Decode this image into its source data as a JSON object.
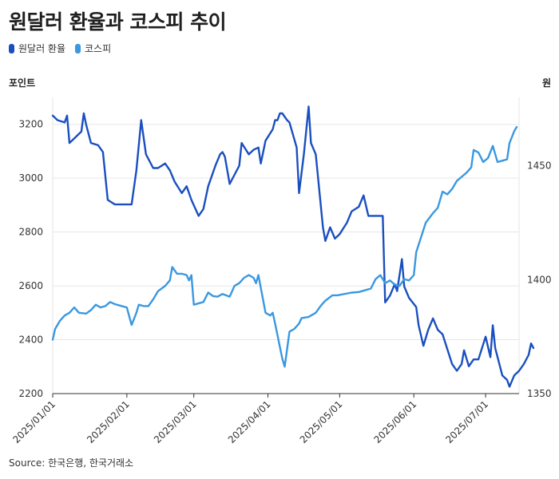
{
  "title": "원달러 환율과 코스피 추이",
  "legend": [
    {
      "label": "원달러 환율",
      "color": "#1a4fbf"
    },
    {
      "label": "코스피",
      "color": "#3a98e0"
    }
  ],
  "left_unit": "포인트",
  "right_unit": "원",
  "source": "Source: 한국은행, 한국거래소",
  "chart_data": {
    "type": "line",
    "title": "원달러 환율과 코스피 추이",
    "xlabel": "",
    "ylabel": "포인트",
    "y2label": "원",
    "x_ticks": [
      "2025/01/01",
      "2025/02/01",
      "2025/03/01",
      "2025/04/01",
      "2025/05/01",
      "2025/06/01",
      "2025/07/01"
    ],
    "ylim": [
      2200,
      3300
    ],
    "y_ticks": [
      2200,
      2400,
      2600,
      2800,
      3000,
      3200
    ],
    "y2lim": [
      1350,
      1480
    ],
    "y2_ticks": [
      1350,
      1400,
      1450
    ],
    "grid": true,
    "legend_position": "top-left",
    "series": [
      {
        "name": "원달러 환율",
        "axis": "right",
        "color": "#1a4fbf",
        "points": [
          [
            "2025-01-01",
            1472
          ],
          [
            "2025-01-03",
            1470
          ],
          [
            "2025-01-06",
            1469
          ],
          [
            "2025-01-07",
            1472
          ],
          [
            "2025-01-08",
            1460
          ],
          [
            "2025-01-10",
            1462
          ],
          [
            "2025-01-13",
            1465
          ],
          [
            "2025-01-14",
            1473
          ],
          [
            "2025-01-15",
            1468
          ],
          [
            "2025-01-17",
            1460
          ],
          [
            "2025-01-20",
            1459
          ],
          [
            "2025-01-22",
            1456
          ],
          [
            "2025-01-24",
            1435
          ],
          [
            "2025-01-27",
            1433
          ],
          [
            "2025-02-03",
            1433
          ],
          [
            "2025-02-05",
            1448
          ],
          [
            "2025-02-07",
            1470
          ],
          [
            "2025-02-09",
            1455
          ],
          [
            "2025-02-12",
            1449
          ],
          [
            "2025-02-14",
            1449
          ],
          [
            "2025-02-17",
            1451
          ],
          [
            "2025-02-19",
            1448
          ],
          [
            "2025-02-21",
            1443
          ],
          [
            "2025-02-24",
            1438
          ],
          [
            "2025-02-26",
            1441
          ],
          [
            "2025-02-28",
            1435
          ],
          [
            "2025-03-03",
            1428
          ],
          [
            "2025-03-05",
            1431
          ],
          [
            "2025-03-07",
            1441
          ],
          [
            "2025-03-10",
            1450
          ],
          [
            "2025-03-12",
            1455
          ],
          [
            "2025-03-13",
            1456
          ],
          [
            "2025-03-14",
            1454
          ],
          [
            "2025-03-16",
            1442
          ],
          [
            "2025-03-18",
            1446
          ],
          [
            "2025-03-20",
            1450
          ],
          [
            "2025-03-21",
            1460
          ],
          [
            "2025-03-24",
            1455
          ],
          [
            "2025-03-26",
            1457
          ],
          [
            "2025-03-28",
            1458
          ],
          [
            "2025-03-29",
            1451
          ],
          [
            "2025-03-31",
            1461
          ],
          [
            "2025-04-03",
            1466
          ],
          [
            "2025-04-04",
            1470
          ],
          [
            "2025-04-05",
            1470
          ],
          [
            "2025-04-06",
            1473
          ],
          [
            "2025-04-07",
            1473
          ],
          [
            "2025-04-09",
            1470
          ],
          [
            "2025-04-10",
            1469
          ],
          [
            "2025-04-13",
            1458
          ],
          [
            "2025-04-14",
            1438
          ],
          [
            "2025-04-16",
            1455
          ],
          [
            "2025-04-18",
            1476
          ],
          [
            "2025-04-19",
            1460
          ],
          [
            "2025-04-21",
            1455
          ],
          [
            "2025-04-24",
            1423
          ],
          [
            "2025-04-25",
            1417
          ],
          [
            "2025-04-27",
            1423
          ],
          [
            "2025-04-29",
            1418
          ],
          [
            "2025-05-01",
            1420
          ],
          [
            "2025-05-04",
            1425
          ],
          [
            "2025-05-06",
            1430
          ],
          [
            "2025-05-09",
            1432
          ],
          [
            "2025-05-11",
            1437
          ],
          [
            "2025-05-13",
            1428
          ],
          [
            "2025-05-19",
            1428
          ],
          [
            "2025-05-20",
            1390
          ],
          [
            "2025-05-22",
            1393
          ],
          [
            "2025-05-24",
            1398
          ],
          [
            "2025-05-25",
            1395
          ],
          [
            "2025-05-27",
            1409
          ],
          [
            "2025-05-28",
            1397
          ],
          [
            "2025-05-30",
            1392
          ],
          [
            "2025-06-02",
            1388
          ],
          [
            "2025-06-03",
            1380
          ],
          [
            "2025-06-05",
            1371
          ],
          [
            "2025-06-07",
            1378
          ],
          [
            "2025-06-09",
            1383
          ],
          [
            "2025-06-11",
            1378
          ],
          [
            "2025-06-13",
            1376
          ],
          [
            "2025-06-17",
            1363
          ],
          [
            "2025-06-19",
            1360
          ],
          [
            "2025-06-21",
            1363
          ],
          [
            "2025-06-22",
            1369
          ],
          [
            "2025-06-24",
            1362
          ],
          [
            "2025-06-26",
            1365
          ],
          [
            "2025-06-28",
            1365
          ],
          [
            "2025-07-01",
            1375
          ],
          [
            "2025-07-03",
            1366
          ],
          [
            "2025-07-04",
            1380
          ],
          [
            "2025-07-05",
            1370
          ],
          [
            "2025-07-08",
            1358
          ],
          [
            "2025-07-10",
            1356
          ],
          [
            "2025-07-11",
            1353
          ],
          [
            "2025-07-13",
            1358
          ],
          [
            "2025-07-15",
            1360
          ],
          [
            "2025-07-17",
            1363
          ],
          [
            "2025-07-19",
            1367
          ],
          [
            "2025-07-20",
            1372
          ],
          [
            "2025-07-21",
            1370
          ]
        ]
      },
      {
        "name": "코스피",
        "axis": "left",
        "color": "#3a98e0",
        "points": [
          [
            "2025-01-01",
            2400
          ],
          [
            "2025-01-02",
            2440
          ],
          [
            "2025-01-04",
            2470
          ],
          [
            "2025-01-06",
            2490
          ],
          [
            "2025-01-08",
            2500
          ],
          [
            "2025-01-10",
            2520
          ],
          [
            "2025-01-12",
            2500
          ],
          [
            "2025-01-15",
            2497
          ],
          [
            "2025-01-17",
            2510
          ],
          [
            "2025-01-19",
            2530
          ],
          [
            "2025-01-21",
            2520
          ],
          [
            "2025-01-23",
            2525
          ],
          [
            "2025-01-25",
            2540
          ],
          [
            "2025-01-27",
            2532
          ],
          [
            "2025-01-29",
            2527
          ],
          [
            "2025-02-01",
            2520
          ],
          [
            "2025-02-03",
            2455
          ],
          [
            "2025-02-05",
            2500
          ],
          [
            "2025-02-06",
            2530
          ],
          [
            "2025-02-08",
            2525
          ],
          [
            "2025-02-10",
            2525
          ],
          [
            "2025-02-12",
            2550
          ],
          [
            "2025-02-14",
            2580
          ],
          [
            "2025-02-17",
            2600
          ],
          [
            "2025-02-19",
            2620
          ],
          [
            "2025-02-20",
            2670
          ],
          [
            "2025-02-22",
            2645
          ],
          [
            "2025-02-24",
            2645
          ],
          [
            "2025-02-26",
            2640
          ],
          [
            "2025-02-27",
            2620
          ],
          [
            "2025-02-28",
            2640
          ],
          [
            "2025-03-01",
            2530
          ],
          [
            "2025-03-05",
            2540
          ],
          [
            "2025-03-07",
            2575
          ],
          [
            "2025-03-09",
            2562
          ],
          [
            "2025-03-11",
            2560
          ],
          [
            "2025-03-13",
            2570
          ],
          [
            "2025-03-16",
            2560
          ],
          [
            "2025-03-18",
            2600
          ],
          [
            "2025-03-20",
            2610
          ],
          [
            "2025-03-22",
            2630
          ],
          [
            "2025-03-24",
            2640
          ],
          [
            "2025-03-26",
            2630
          ],
          [
            "2025-03-27",
            2610
          ],
          [
            "2025-03-28",
            2640
          ],
          [
            "2025-03-31",
            2500
          ],
          [
            "2025-04-02",
            2490
          ],
          [
            "2025-04-03",
            2500
          ],
          [
            "2025-04-04",
            2460
          ],
          [
            "2025-04-07",
            2330
          ],
          [
            "2025-04-08",
            2300
          ],
          [
            "2025-04-10",
            2430
          ],
          [
            "2025-04-12",
            2440
          ],
          [
            "2025-04-14",
            2460
          ],
          [
            "2025-04-15",
            2480
          ],
          [
            "2025-04-18",
            2485
          ],
          [
            "2025-04-21",
            2500
          ],
          [
            "2025-04-23",
            2525
          ],
          [
            "2025-04-25",
            2545
          ],
          [
            "2025-04-28",
            2565
          ],
          [
            "2025-04-30",
            2565
          ],
          [
            "2025-05-06",
            2575
          ],
          [
            "2025-05-09",
            2577
          ],
          [
            "2025-05-14",
            2590
          ],
          [
            "2025-05-16",
            2625
          ],
          [
            "2025-05-18",
            2640
          ],
          [
            "2025-05-20",
            2610
          ],
          [
            "2025-05-22",
            2620
          ],
          [
            "2025-05-24",
            2605
          ],
          [
            "2025-05-26",
            2600
          ],
          [
            "2025-05-28",
            2625
          ],
          [
            "2025-05-30",
            2620
          ],
          [
            "2025-06-01",
            2640
          ],
          [
            "2025-06-02",
            2725
          ],
          [
            "2025-06-04",
            2780
          ],
          [
            "2025-06-06",
            2835
          ],
          [
            "2025-06-09",
            2870
          ],
          [
            "2025-06-11",
            2890
          ],
          [
            "2025-06-13",
            2950
          ],
          [
            "2025-06-15",
            2940
          ],
          [
            "2025-06-17",
            2960
          ],
          [
            "2025-06-19",
            2990
          ],
          [
            "2025-06-21",
            3005
          ],
          [
            "2025-06-23",
            3020
          ],
          [
            "2025-06-25",
            3040
          ],
          [
            "2025-06-26",
            3105
          ],
          [
            "2025-06-28",
            3095
          ],
          [
            "2025-06-30",
            3060
          ],
          [
            "2025-07-02",
            3075
          ],
          [
            "2025-07-04",
            3120
          ],
          [
            "2025-07-06",
            3060
          ],
          [
            "2025-07-08",
            3065
          ],
          [
            "2025-07-10",
            3070
          ],
          [
            "2025-07-11",
            3130
          ],
          [
            "2025-07-13",
            3175
          ],
          [
            "2025-07-14",
            3190
          ]
        ]
      }
    ]
  }
}
